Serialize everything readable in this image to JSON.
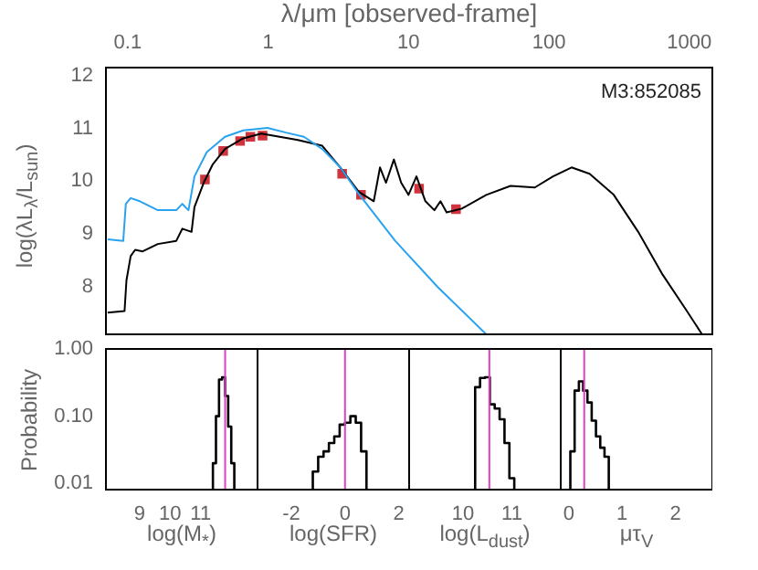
{
  "chart_data": [
    {
      "type": "line",
      "xlabel": "λ/μm [observed-frame]",
      "ylabel": "log(λL$_{λ}$/L$_{sun}$)",
      "log": "x",
      "xlim": [
        0.07,
        1460
      ],
      "ylim": [
        7.1,
        12.15
      ],
      "xticks": [
        0.1,
        1,
        10,
        100,
        1000
      ],
      "yticks": [
        8,
        9,
        10,
        11,
        12
      ],
      "annotations": [
        "M3:852085"
      ],
      "series": [
        {
          "type": "line",
          "color": "#29a3f0",
          "marker": "none",
          "x": [
            0.072,
            0.093,
            0.097,
            0.105,
            0.122,
            0.164,
            0.222,
            0.245,
            0.271,
            0.299,
            0.366,
            0.493,
            0.665,
            0.991,
            1.34,
            1.8,
            2.43,
            3.27,
            4.42,
            8.04,
            16.1,
            35.8
          ],
          "values": [
            8.9,
            8.87,
            9.57,
            9.68,
            9.62,
            9.45,
            9.45,
            9.57,
            9.45,
            10.09,
            10.55,
            10.84,
            10.96,
            11.01,
            10.92,
            10.84,
            10.61,
            10.26,
            9.76,
            8.87,
            8.0,
            7.1
          ]
        },
        {
          "type": "line",
          "color": "#000000",
          "marker": "none",
          "x": [
            0.072,
            0.095,
            0.098,
            0.105,
            0.113,
            0.128,
            0.164,
            0.222,
            0.245,
            0.285,
            0.299,
            0.348,
            0.404,
            0.493,
            0.665,
            0.895,
            1.21,
            1.63,
            2.43,
            3.27,
            4.42,
            5.66,
            6.27,
            6.92,
            7.87,
            8.87,
            10,
            11.4,
            13.2,
            15.3,
            16.9,
            18.7,
            24,
            35.8,
            53.3,
            79.4,
            107,
            145,
            195,
            290,
            433,
            646,
            962,
            1233
          ],
          "values": [
            7.51,
            7.54,
            8.12,
            8.58,
            8.7,
            8.67,
            8.81,
            8.87,
            9.1,
            9.04,
            9.51,
            9.97,
            10.32,
            10.61,
            10.81,
            10.9,
            10.84,
            10.78,
            10.67,
            10.26,
            9.8,
            9.62,
            10.26,
            9.97,
            10.41,
            9.97,
            9.74,
            10.09,
            9.62,
            9.45,
            9.62,
            9.41,
            9.48,
            9.74,
            9.91,
            9.88,
            10.09,
            10.26,
            10.14,
            9.74,
            9.04,
            8.23,
            7.54,
            7.1
          ]
        },
        {
          "type": "scatter",
          "color": "#d0343c",
          "marker": "square",
          "x": [
            0.355,
            0.479,
            0.632,
            0.748,
            0.914,
            3.37,
            4.59,
            11.9,
            21.8
          ],
          "values": [
            10.03,
            10.57,
            10.76,
            10.84,
            10.86,
            10.14,
            9.74,
            9.86,
            9.47
          ]
        }
      ]
    },
    {
      "type": "histogram",
      "xlabel": "log(M$_{*}$)",
      "ylabel": "Probability",
      "log": "y",
      "xlim": [
        7.9,
        12.86
      ],
      "ylim": [
        0.0081,
        1
      ],
      "xticks": [
        9,
        10,
        11
      ],
      "yticks": [
        {
          "value": 1,
          "label": "1.00"
        },
        {
          "value": 0.1,
          "label": "0.10"
        },
        {
          "value": 0.01,
          "label": "0.01"
        }
      ],
      "color": "#000000",
      "bins": [
        11.4,
        11.5,
        11.6,
        11.7,
        11.8,
        11.9,
        12.0,
        12.1
      ],
      "values": [
        0.02,
        0.1,
        0.35,
        0.38,
        0.2,
        0.07,
        0.02
      ],
      "ref_lines": [
        {
          "axis": "x",
          "value": 11.8,
          "color": "#e040c0"
        }
      ]
    },
    {
      "type": "histogram",
      "xlabel": "log(SFR)",
      "log": "y",
      "tick_labels": "x",
      "xlim": [
        -3.26,
        2.39
      ],
      "ylim": [
        0.0081,
        1
      ],
      "xticks": [
        -2,
        0,
        2
      ],
      "yticks": [
        1,
        0.1,
        0.01
      ],
      "color": "#000000",
      "bins": [
        -1.2,
        -1.0,
        -0.8,
        -0.6,
        -0.4,
        -0.2,
        0,
        0.2,
        0.4,
        0.6,
        0.8
      ],
      "values": [
        0.015,
        0.025,
        0.03,
        0.04,
        0.05,
        0.075,
        0.08,
        0.1,
        0.08,
        0.03
      ],
      "ref_lines": [
        {
          "axis": "x",
          "value": 0,
          "color": "#e040c0"
        }
      ]
    },
    {
      "type": "histogram",
      "xlabel": "log(L$_{dust}$)",
      "log": "y",
      "tick_labels": "x",
      "xlim": [
        8.9,
        12.0
      ],
      "ylim": [
        0.0081,
        1
      ],
      "xticks": [
        10,
        11
      ],
      "yticks": [
        1,
        0.1,
        0.01
      ],
      "color": "#000000",
      "bins": [
        10.25,
        10.35,
        10.45,
        10.55,
        10.65,
        10.75,
        10.85,
        10.95,
        11.05
      ],
      "values": [
        0.27,
        0.37,
        0.38,
        0.15,
        0.13,
        0.09,
        0.04,
        0.012
      ],
      "ref_lines": [
        {
          "axis": "x",
          "value": 10.54,
          "color": "#e040c0"
        }
      ]
    },
    {
      "type": "histogram",
      "xlabel": "μτ$_{V}$",
      "log": "y",
      "tick_labels": "x",
      "xlim": [
        -0.15,
        2.69
      ],
      "ylim": [
        0.0081,
        1
      ],
      "xticks": [
        0,
        1,
        2
      ],
      "yticks": [
        1,
        0.1,
        0.01
      ],
      "color": "#000000",
      "bins": [
        0.03,
        0.11,
        0.19,
        0.27,
        0.35,
        0.43,
        0.51,
        0.59,
        0.67,
        0.75
      ],
      "values": [
        0.03,
        0.24,
        0.33,
        0.24,
        0.16,
        0.086,
        0.05,
        0.034,
        0.025
      ],
      "ref_lines": [
        {
          "axis": "x",
          "value": 0.29,
          "color": "#e040c0"
        }
      ]
    }
  ]
}
